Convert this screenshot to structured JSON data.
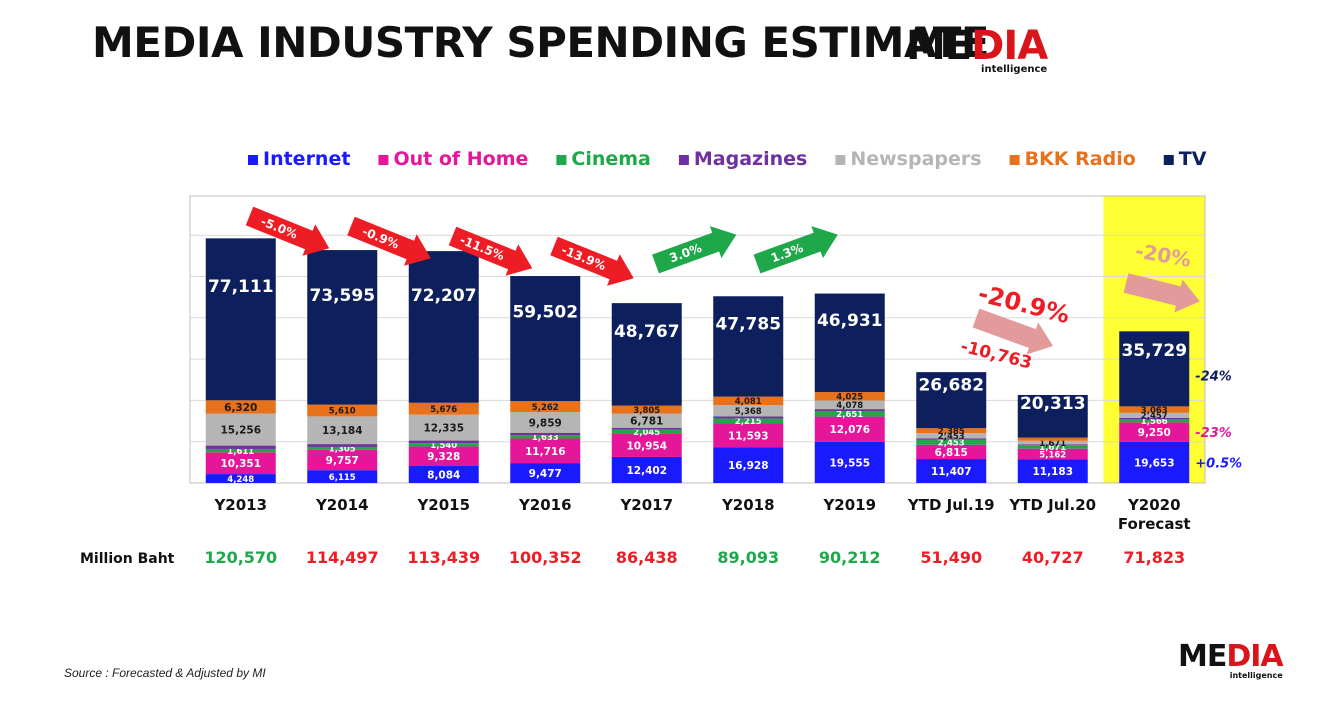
{
  "header": {
    "title": "MEDIA INDUSTRY SPENDING ESTIMATE"
  },
  "logo": {
    "word_left": "ME",
    "word_mid": "D",
    "word_right": "IA",
    "sub": "intelligence"
  },
  "source": "Source :  Forecasted & Adjusted by MI",
  "colors": {
    "Internet": "#1a1aff",
    "Out of Home": "#e6169b",
    "Cinema": "#1fa84a",
    "Magazines": "#7030a0",
    "Newspapers": "#b5b5b5",
    "BKK Radio": "#e8711c",
    "TV": "#0d1f5c",
    "highlight": "#ffff33",
    "total_up": "#1fa84a",
    "total_down": "#ee1c24",
    "arrow_down": "#ee1c24",
    "arrow_up": "#1fa84a",
    "arrow_pink": "#e39a9a",
    "pct_tv": "#0d1f5c",
    "pct_ooh": "#e6169b",
    "pct_internet": "#1a1aff"
  },
  "chart_data": {
    "type": "bar",
    "stacked": true,
    "unit_label": "Million Baht",
    "legend_position": "top",
    "grid": true,
    "categories": [
      "Y2013",
      "Y2014",
      "Y2015",
      "Y2016",
      "Y2017",
      "Y2018",
      "Y2019",
      "YTD Jul.19",
      "YTD Jul.20",
      "Y2020 Forecast"
    ],
    "category_lines": [
      [
        "Y2013"
      ],
      [
        "Y2014"
      ],
      [
        "Y2015"
      ],
      [
        "Y2016"
      ],
      [
        "Y2017"
      ],
      [
        "Y2018"
      ],
      [
        "Y2019"
      ],
      [
        "YTD Jul.19"
      ],
      [
        "YTD Jul.20"
      ],
      [
        "Y2020",
        "Forecast"
      ]
    ],
    "series": [
      {
        "name": "Internet",
        "values": [
          4248,
          6115,
          8084,
          9477,
          12402,
          16928,
          19555,
          11407,
          11183,
          19653
        ]
      },
      {
        "name": "Out of Home",
        "values": [
          10351,
          9757,
          9328,
          11716,
          10954,
          11593,
          12076,
          6815,
          5162,
          9250
        ]
      },
      {
        "name": "Cinema",
        "values": [
          1611,
          1305,
          1540,
          1633,
          2045,
          2215,
          2651,
          2453,
          1671,
          1566
        ]
      },
      {
        "name": "Magazines",
        "values": [
          1600,
          1350,
          1250,
          1100,
          900,
          950,
          900,
          600,
          400,
          500
        ]
      },
      {
        "name": "Newspapers",
        "values": [
          15256,
          13184,
          12335,
          9859,
          6781,
          5368,
          4078,
          2453,
          1671,
          2457
        ]
      },
      {
        "name": "BKK Radio",
        "values": [
          6320,
          5610,
          5676,
          5262,
          3805,
          4081,
          4025,
          2385,
          1520,
          3063
        ]
      },
      {
        "name": "TV",
        "values": [
          77111,
          73595,
          72207,
          59502,
          48767,
          47785,
          46931,
          26682,
          20313,
          35729
        ]
      }
    ],
    "labels": [
      [
        "4,248",
        "10,351",
        "1,611",
        "",
        "15,256",
        "6,320",
        "77,111"
      ],
      [
        "6,115",
        "9,757",
        "1,305",
        "",
        "13,184",
        "5,610",
        "73,595"
      ],
      [
        "8,084",
        "9,328",
        "1,540",
        "",
        "12,335",
        "5,676",
        "72,207"
      ],
      [
        "9,477",
        "11,716",
        "1,633",
        "",
        "9,859",
        "5,262",
        "59,502"
      ],
      [
        "12,402",
        "10,954",
        "2,045",
        "",
        "6,781",
        "3,805",
        "48,767"
      ],
      [
        "16,928",
        "11,593",
        "2,215",
        "",
        "5,368",
        "4,081",
        "47,785"
      ],
      [
        "19,555",
        "12,076",
        "2,651",
        "",
        "4,078",
        "4,025",
        "46,931"
      ],
      [
        "11,407",
        "6,815",
        "2,453",
        "",
        "2,453",
        "2,385",
        "26,682"
      ],
      [
        "11,183",
        "5,162",
        "1,671",
        "",
        "1,671",
        "",
        "20,313"
      ],
      [
        "19,653",
        "9,250",
        "1,566",
        "",
        "2,457",
        "3,063",
        "35,729"
      ]
    ],
    "totals": [
      {
        "value": "120,570",
        "trend": "up"
      },
      {
        "value": "114,497",
        "trend": "down"
      },
      {
        "value": "113,439",
        "trend": "down"
      },
      {
        "value": "100,352",
        "trend": "down"
      },
      {
        "value": "86,438",
        "trend": "down"
      },
      {
        "value": "89,093",
        "trend": "up"
      },
      {
        "value": "90,212",
        "trend": "up"
      },
      {
        "value": "51,490",
        "trend": "down"
      },
      {
        "value": "40,727",
        "trend": "down"
      },
      {
        "value": "71,823",
        "trend": "down"
      }
    ],
    "growth_arrows": [
      {
        "label": "-5.0%",
        "between": [
          0,
          1
        ],
        "direction": "down"
      },
      {
        "label": "-0.9%",
        "between": [
          1,
          2
        ],
        "direction": "down"
      },
      {
        "label": "-11.5%",
        "between": [
          2,
          3
        ],
        "direction": "down"
      },
      {
        "label": "-13.9%",
        "between": [
          3,
          4
        ],
        "direction": "down"
      },
      {
        "label": "3.0%",
        "between": [
          4,
          5
        ],
        "direction": "up"
      },
      {
        "label": "1.3%",
        "between": [
          5,
          6
        ],
        "direction": "up"
      }
    ],
    "annotations": {
      "ytd_change_pct": "-20.9%",
      "ytd_change_abs": "-10,763",
      "forecast_change_pct": "-20%",
      "side_labels": [
        {
          "series": "TV",
          "label": "-24%"
        },
        {
          "series": "Out of Home",
          "label": "-23%"
        },
        {
          "series": "Internet",
          "label": "+0.5%"
        }
      ]
    }
  }
}
